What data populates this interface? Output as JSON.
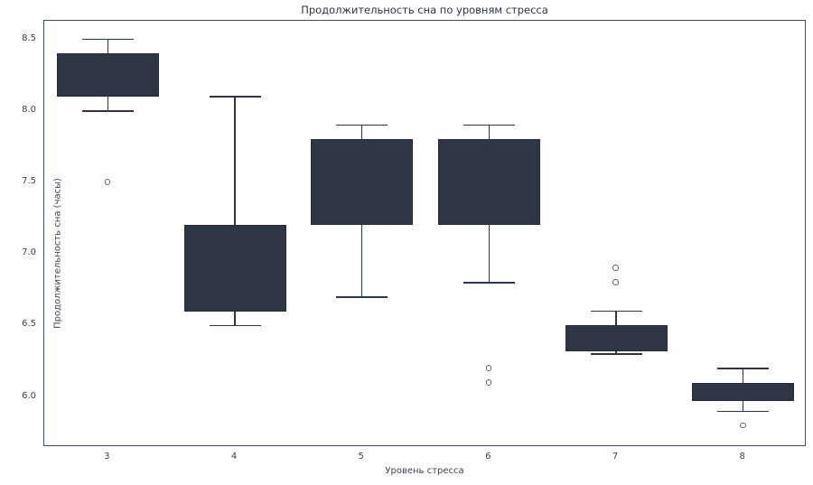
{
  "chart_data": {
    "type": "boxplot",
    "title": "Продолжительность сна по уровням стресса",
    "xlabel": "Уровень стресса",
    "ylabel": "Продолжительность сна (часы)",
    "categories": [
      "3",
      "4",
      "5",
      "6",
      "7",
      "8"
    ],
    "ylim": [
      5.65,
      8.63
    ],
    "yticks": [
      8.5,
      8.0,
      7.5,
      7.0,
      6.5,
      6.0
    ],
    "grid": "off",
    "legend": "none",
    "boxes": [
      {
        "category": "3",
        "whisker_low": 8.0,
        "q1": 8.1,
        "q3": 8.4,
        "whisker_high": 8.5,
        "outliers": [
          7.5
        ]
      },
      {
        "category": "4",
        "whisker_low": 6.5,
        "q1": 6.6,
        "q3": 7.2,
        "whisker_high": 8.1,
        "outliers": []
      },
      {
        "category": "5",
        "whisker_low": 6.7,
        "q1": 7.2,
        "q3": 7.8,
        "whisker_high": 7.9,
        "outliers": []
      },
      {
        "category": "6",
        "whisker_low": 6.8,
        "q1": 7.2,
        "q3": 7.8,
        "whisker_high": 7.9,
        "outliers": [
          6.2,
          6.1
        ]
      },
      {
        "category": "7",
        "whisker_low": 6.3,
        "q1": 6.32,
        "q3": 6.5,
        "whisker_high": 6.6,
        "outliers": [
          6.9,
          6.8
        ]
      },
      {
        "category": "8",
        "whisker_low": 5.9,
        "q1": 5.97,
        "q3": 6.1,
        "whisker_high": 6.2,
        "outliers": [
          5.8
        ]
      }
    ],
    "colors": {
      "box_fill": "#2e3543",
      "box_edge": "#262d3a",
      "whisker": "#2e3543",
      "outlier_edge": "#59616f",
      "spine": "#454e5e",
      "text": "#3a4252"
    }
  }
}
